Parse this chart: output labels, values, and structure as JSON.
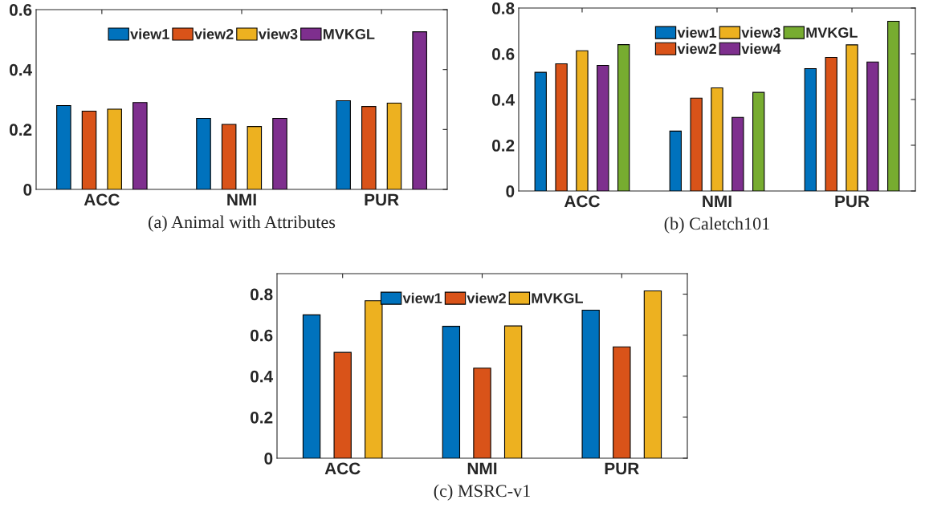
{
  "chart_data": [
    {
      "type": "bar",
      "xlabel": "(a) Animal with Attributes",
      "categories": [
        "ACC",
        "NMI",
        "PUR"
      ],
      "ylim": [
        0,
        0.6
      ],
      "yticks": [
        0,
        0.2,
        0.4,
        0.6
      ],
      "legend": "top",
      "series": [
        {
          "name": "view1",
          "color": "#0072bd",
          "values": [
            0.28,
            0.237,
            0.296
          ]
        },
        {
          "name": "view2",
          "color": "#d95319",
          "values": [
            0.261,
            0.217,
            0.277
          ]
        },
        {
          "name": "view3",
          "color": "#edb120",
          "values": [
            0.268,
            0.21,
            0.288
          ]
        },
        {
          "name": "MVKGL",
          "color": "#7e2f8e",
          "values": [
            0.29,
            0.237,
            0.526
          ]
        }
      ]
    },
    {
      "type": "bar",
      "xlabel": "(b) Caletch101",
      "categories": [
        "ACC",
        "NMI",
        "PUR"
      ],
      "ylim": [
        0,
        0.8
      ],
      "yticks": [
        0,
        0.2,
        0.4,
        0.6,
        0.8
      ],
      "legend": "top",
      "series": [
        {
          "name": "view1",
          "color": "#0072bd",
          "values": [
            0.519,
            0.262,
            0.535
          ]
        },
        {
          "name": "view2",
          "color": "#d95319",
          "values": [
            0.556,
            0.406,
            0.584
          ]
        },
        {
          "name": "view3",
          "color": "#edb120",
          "values": [
            0.613,
            0.451,
            0.639
          ]
        },
        {
          "name": "view4",
          "color": "#7e2f8e",
          "values": [
            0.549,
            0.322,
            0.564
          ]
        },
        {
          "name": "MVKGL",
          "color": "#77ac30",
          "values": [
            0.64,
            0.431,
            0.742
          ]
        }
      ]
    },
    {
      "type": "bar",
      "xlabel": "(c) MSRC-v1",
      "categories": [
        "ACC",
        "NMI",
        "PUR"
      ],
      "ylim": [
        0,
        0.9
      ],
      "yticks": [
        0,
        0.2,
        0.4,
        0.6,
        0.8
      ],
      "legend": "top",
      "series": [
        {
          "name": "view1",
          "color": "#0072bd",
          "values": [
            0.699,
            0.643,
            0.722
          ]
        },
        {
          "name": "view2",
          "color": "#d95319",
          "values": [
            0.516,
            0.439,
            0.543
          ]
        },
        {
          "name": "MVKGL",
          "color": "#edb120",
          "values": [
            0.768,
            0.645,
            0.816
          ]
        }
      ]
    }
  ]
}
